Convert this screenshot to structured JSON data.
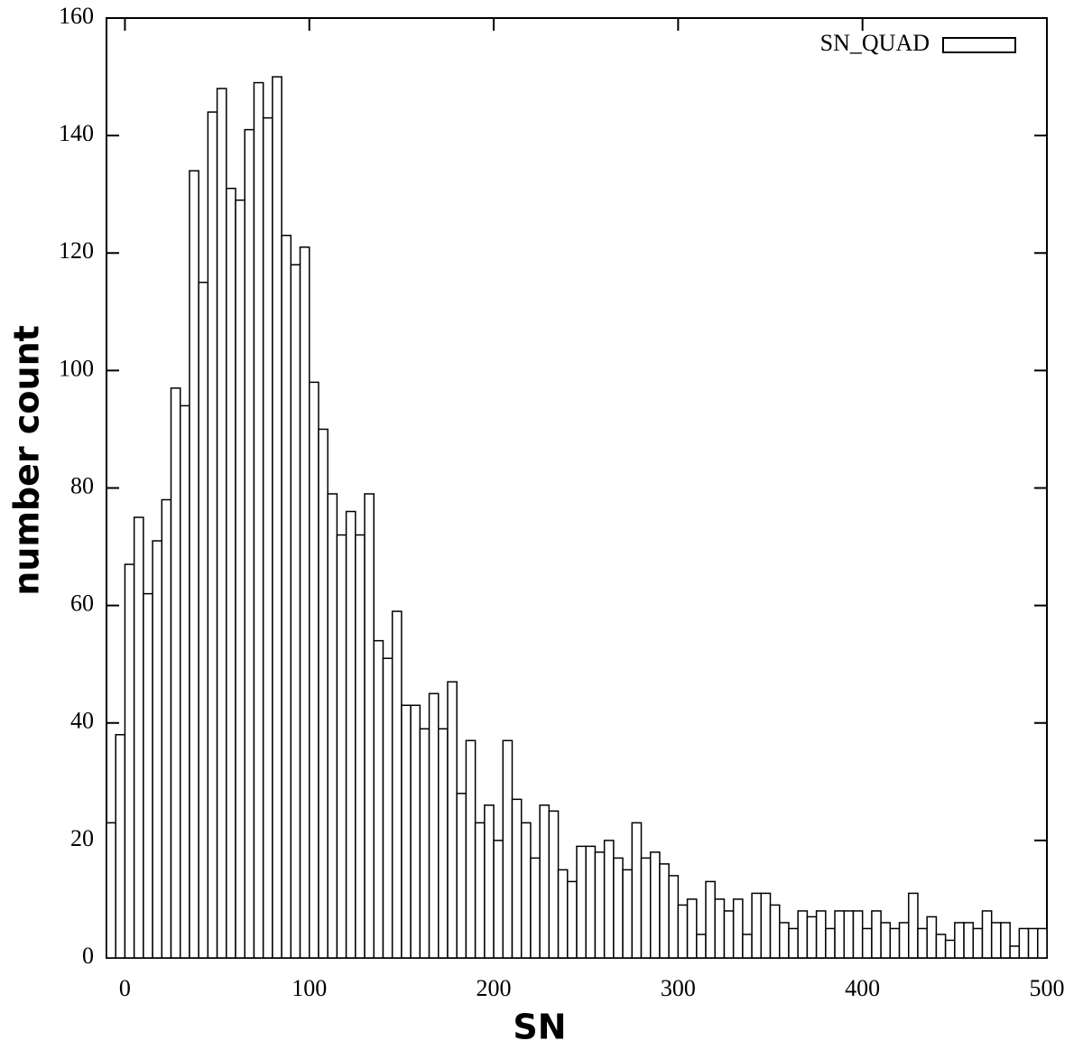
{
  "chart_data": {
    "type": "histogram",
    "xlabel": "SN",
    "ylabel": "number  count",
    "series": [
      {
        "name": "SN_QUAD",
        "color": "#ffffff",
        "bins": [
          -10,
          -5,
          0,
          5,
          10,
          15,
          20,
          25,
          30,
          35,
          40,
          45,
          50,
          55,
          60,
          65,
          70,
          75,
          80,
          85,
          90,
          95,
          100,
          105,
          110,
          115,
          120,
          125,
          130,
          135,
          140,
          145,
          150,
          155,
          160,
          165,
          170,
          175,
          180,
          185,
          190,
          195,
          200,
          205,
          210,
          215,
          220,
          225,
          230,
          235,
          240,
          245,
          250,
          255,
          260,
          265,
          270,
          275,
          280,
          285,
          290,
          295,
          300,
          305,
          310,
          315,
          320,
          325,
          330,
          335,
          340,
          345,
          350,
          355,
          360,
          365,
          370,
          375,
          380,
          385,
          390,
          395,
          400,
          405,
          410,
          415,
          420,
          425,
          430,
          435,
          440,
          445,
          450,
          455,
          460,
          465,
          470,
          475,
          480,
          485,
          490,
          495,
          500
        ],
        "values": [
          23,
          38,
          67,
          75,
          62,
          71,
          78,
          97,
          94,
          134,
          115,
          144,
          148,
          131,
          129,
          141,
          149,
          143,
          150,
          123,
          118,
          121,
          98,
          90,
          79,
          72,
          76,
          72,
          79,
          54,
          51,
          59,
          43,
          43,
          39,
          45,
          39,
          47,
          28,
          37,
          23,
          26,
          20,
          37,
          27,
          23,
          17,
          26,
          25,
          15,
          13,
          19,
          19,
          18,
          20,
          17,
          15,
          23,
          17,
          18,
          16,
          14,
          9,
          10,
          4,
          13,
          10,
          8,
          10,
          4,
          11,
          11,
          9,
          6,
          5,
          8,
          7,
          8,
          5,
          8,
          8,
          8,
          5,
          8,
          6,
          5,
          6,
          11,
          5,
          7,
          4,
          3,
          6,
          6,
          5,
          8,
          6,
          6,
          2,
          5,
          5,
          5
        ]
      }
    ],
    "xlim": [
      -10,
      500
    ],
    "ylim": [
      0,
      160
    ],
    "xticks": [
      0,
      100,
      200,
      300,
      400,
      500
    ],
    "yticks": [
      0,
      20,
      40,
      60,
      80,
      100,
      120,
      140,
      160
    ],
    "legend": "upper right"
  }
}
